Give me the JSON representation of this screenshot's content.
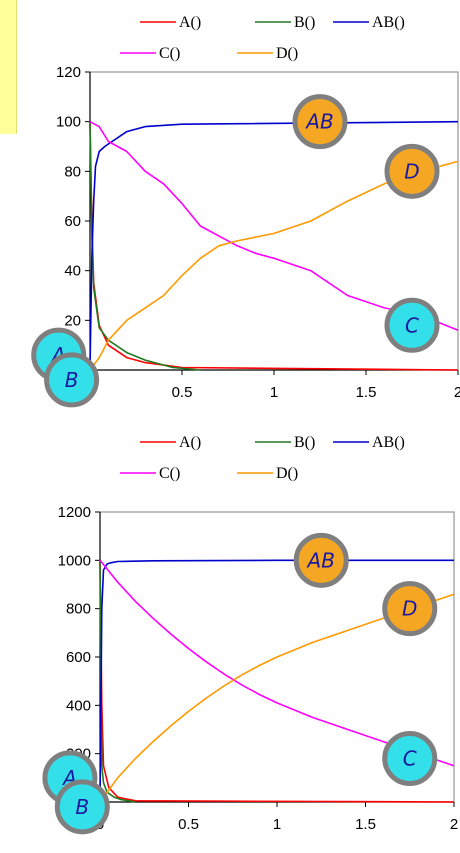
{
  "chart_data": [
    {
      "type": "line",
      "title": "",
      "xlabel": "",
      "ylabel": "",
      "xlim": [
        0,
        2
      ],
      "ylim": [
        0,
        120
      ],
      "xticks": [
        "",
        "0.5",
        "1",
        "1.5",
        "2"
      ],
      "yticks": [
        "",
        "20",
        "40",
        "60",
        "80",
        "100",
        "120"
      ],
      "legend": {
        "placement": "top-center"
      },
      "series": [
        {
          "name": "A()",
          "color": "#ff0000",
          "x": [
            0,
            0.01,
            0.02,
            0.05,
            0.1,
            0.2,
            0.3,
            0.5,
            2
          ],
          "y": [
            100,
            60,
            35,
            18,
            10,
            5,
            3,
            1,
            0
          ]
        },
        {
          "name": "B()",
          "color": "#207a20",
          "x": [
            0,
            0.01,
            0.02,
            0.05,
            0.1,
            0.2,
            0.3,
            0.45,
            0.6
          ],
          "y": [
            100,
            55,
            33,
            17,
            12,
            7,
            4,
            1,
            0
          ]
        },
        {
          "name": "AB()",
          "color": "#0000cc",
          "x": [
            0,
            0.01,
            0.02,
            0.03,
            0.05,
            0.08,
            0.1,
            0.2,
            0.3,
            0.5,
            2
          ],
          "y": [
            0,
            45,
            68,
            82,
            88,
            90,
            91,
            96,
            98,
            99,
            100
          ]
        },
        {
          "name": "C()",
          "color": "#ff00ff",
          "x": [
            0,
            0.05,
            0.1,
            0.2,
            0.3,
            0.4,
            0.5,
            0.6,
            0.7,
            0.8,
            0.9,
            1.0,
            1.2,
            1.4,
            1.6,
            1.8,
            2.0
          ],
          "y": [
            100,
            98,
            92,
            88,
            80,
            75,
            67,
            58,
            54,
            50,
            47,
            45,
            40,
            30,
            25,
            22,
            16
          ]
        },
        {
          "name": "D()",
          "color": "#ff9900",
          "x": [
            0,
            0.05,
            0.1,
            0.2,
            0.3,
            0.4,
            0.5,
            0.6,
            0.7,
            0.8,
            1.0,
            1.2,
            1.4,
            1.6,
            1.8,
            2.0
          ],
          "y": [
            0,
            5,
            12,
            20,
            25,
            30,
            38,
            45,
            50,
            52,
            55,
            60,
            68,
            75,
            80,
            84
          ]
        }
      ],
      "annotations": [
        {
          "label": "AB",
          "x": 1.25,
          "y": 100
        },
        {
          "label": "D",
          "x": 1.75,
          "y": 80
        },
        {
          "label": "C",
          "x": 1.75,
          "y": 18
        },
        {
          "label": "A",
          "x": -0.17,
          "y": 6
        },
        {
          "label": "B",
          "x": -0.1,
          "y": -4
        }
      ]
    },
    {
      "type": "line",
      "title": "",
      "xlabel": "",
      "ylabel": "",
      "xlim": [
        0,
        2
      ],
      "ylim": [
        0,
        1200
      ],
      "xticks": [
        "0",
        "0.5",
        "1",
        "1.5",
        "2"
      ],
      "yticks": [
        "",
        "200",
        "400",
        "600",
        "800",
        "1000",
        "1200"
      ],
      "legend": {
        "placement": "top-center"
      },
      "series": [
        {
          "name": "A()",
          "color": "#ff0000",
          "x": [
            0,
            0.01,
            0.02,
            0.05,
            0.1,
            0.2,
            2
          ],
          "y": [
            1000,
            400,
            150,
            60,
            20,
            5,
            0
          ]
        },
        {
          "name": "B()",
          "color": "#207a20",
          "x": [
            0,
            0.005,
            0.01,
            0.02,
            0.04,
            0.08,
            0.12,
            0.2
          ],
          "y": [
            1000,
            500,
            150,
            80,
            40,
            20,
            10,
            0
          ]
        },
        {
          "name": "AB()",
          "color": "#0000cc",
          "x": [
            0,
            0.005,
            0.01,
            0.02,
            0.04,
            0.06,
            0.1,
            0.3,
            1,
            2
          ],
          "y": [
            0,
            400,
            800,
            960,
            985,
            990,
            995,
            998,
            1000,
            1000
          ]
        },
        {
          "name": "C()",
          "color": "#ff00ff",
          "x": [
            0,
            0.1,
            0.2,
            0.3,
            0.4,
            0.5,
            0.6,
            0.7,
            0.8,
            0.9,
            1.0,
            1.2,
            1.4,
            1.6,
            1.8,
            2.0
          ],
          "y": [
            1000,
            910,
            830,
            760,
            695,
            635,
            580,
            530,
            485,
            445,
            410,
            350,
            300,
            250,
            200,
            150
          ]
        },
        {
          "name": "D()",
          "color": "#ff9900",
          "x": [
            0,
            0.1,
            0.2,
            0.3,
            0.4,
            0.5,
            0.6,
            0.7,
            0.8,
            0.9,
            1.0,
            1.2,
            1.4,
            1.6,
            1.8,
            2.0
          ],
          "y": [
            0,
            100,
            180,
            250,
            315,
            375,
            430,
            480,
            525,
            565,
            600,
            660,
            710,
            760,
            810,
            860
          ]
        }
      ],
      "annotations": [
        {
          "label": "AB",
          "x": 1.25,
          "y": 1000
        },
        {
          "label": "D",
          "x": 1.75,
          "y": 800
        },
        {
          "label": "C",
          "x": 1.75,
          "y": 180
        },
        {
          "label": "A",
          "x": -0.17,
          "y": 100
        },
        {
          "label": "B",
          "x": -0.1,
          "y": -20
        }
      ]
    }
  ]
}
